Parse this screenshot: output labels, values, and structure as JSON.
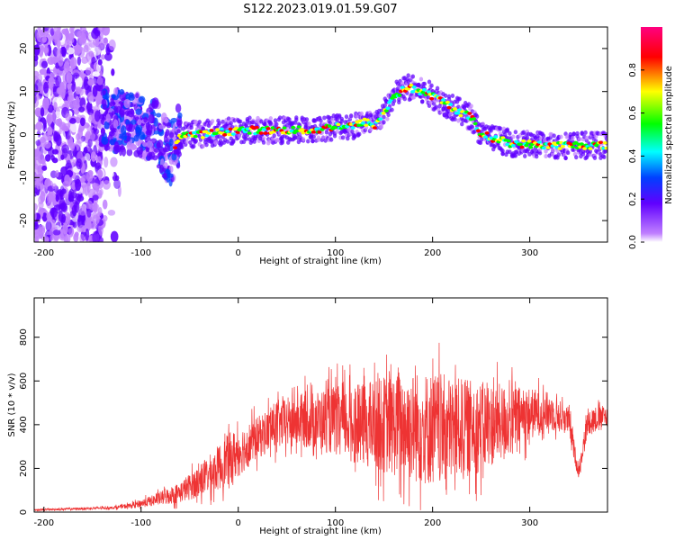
{
  "figure": {
    "title": "S122.2023.019.01.59.G07"
  },
  "chart_data": [
    {
      "type": "heatmap",
      "xlabel": "Height of straight line (km)",
      "ylabel": "Frequency (Hz)",
      "xlim": [
        -210,
        380
      ],
      "ylim": [
        -25,
        25
      ],
      "x_ticks": [
        -200,
        -100,
        0,
        100,
        200,
        300
      ],
      "y_ticks": [
        -20,
        -10,
        0,
        10,
        20
      ],
      "grid": false,
      "colorbar": {
        "label": "Normalized spectral amplitude",
        "range": [
          0,
          1
        ],
        "ticks": [
          "0.0",
          "0.2",
          "0.4",
          "0.6",
          "0.8"
        ],
        "tick_values": [
          0.0,
          0.2,
          0.4,
          0.6,
          0.8
        ],
        "colormap": [
          "#ffffff",
          "#c080ff",
          "#6000ff",
          "#0040ff",
          "#00ffff",
          "#00ff00",
          "#ffff00",
          "#ff0000",
          "#ff0080"
        ]
      },
      "ridge": {
        "x": [
          -150,
          -120,
          -100,
          -85,
          -70,
          -60,
          -40,
          0,
          30,
          60,
          80,
          100,
          120,
          130,
          140,
          150,
          160,
          175,
          200,
          230,
          240,
          250,
          280,
          320,
          350,
          380
        ],
        "y": [
          4,
          3,
          2,
          1,
          -5,
          0,
          0,
          1,
          1,
          1,
          1,
          2,
          2,
          3,
          2,
          5,
          9,
          11,
          9,
          5,
          4,
          0,
          -2,
          -2.5,
          -2.5,
          -2.5
        ]
      }
    },
    {
      "type": "line",
      "xlabel": "Height of straight line (km)",
      "ylabel": "SNR (10 * v/v)",
      "xlim": [
        -210,
        380
      ],
      "ylim": [
        0,
        980
      ],
      "x_ticks": [
        -200,
        -100,
        0,
        100,
        200,
        300
      ],
      "y_ticks": [
        0,
        200,
        400,
        600,
        800
      ],
      "grid": false,
      "color": "#ee3333",
      "envelope": {
        "x": [
          -210,
          -130,
          -110,
          -90,
          -60,
          -30,
          -10,
          20,
          40,
          60,
          80,
          100,
          120,
          150,
          180,
          200,
          220,
          250,
          280,
          300,
          320,
          340,
          350,
          360,
          380
        ],
        "mean": [
          10,
          20,
          30,
          50,
          90,
          170,
          240,
          340,
          400,
          420,
          420,
          420,
          400,
          400,
          390,
          380,
          380,
          390,
          420,
          450,
          460,
          420,
          180,
          420,
          440
        ],
        "spread": [
          5,
          8,
          15,
          30,
          60,
          110,
          150,
          120,
          140,
          150,
          170,
          200,
          220,
          280,
          320,
          330,
          300,
          260,
          200,
          150,
          110,
          80,
          40,
          80,
          60
        ]
      }
    }
  ]
}
